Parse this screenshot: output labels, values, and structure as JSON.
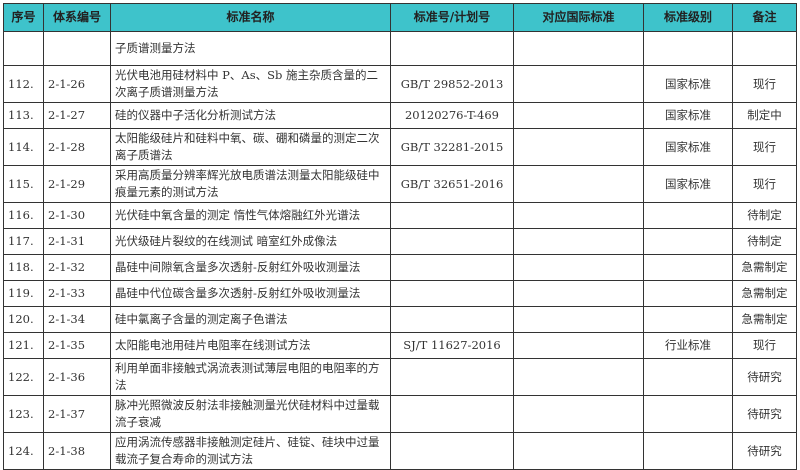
{
  "headers": [
    "序号",
    "体系编号",
    "标准名称",
    "标准号/计划号",
    "对应国际标准",
    "标准级别",
    "备注"
  ],
  "rows": [
    {
      "no": "",
      "code": "",
      "name": "子质谱测量方法",
      "std": "",
      "intl": "",
      "level": "",
      "note": ""
    },
    {
      "no": "112.",
      "code": "2-1-26",
      "name": "光伏电池用硅材料中 P、As、Sb 施主杂质含量的二次离子质谱测量方法",
      "std": "GB/T 29852-2013",
      "intl": "",
      "level": "国家标准",
      "note": "现行"
    },
    {
      "no": "113.",
      "code": "2-1-27",
      "name": "硅的仪器中子活化分析测试方法",
      "std": "20120276-T-469",
      "intl": "",
      "level": "国家标准",
      "note": "制定中"
    },
    {
      "no": "114.",
      "code": "2-1-28",
      "name": "太阳能级硅片和硅料中氧、碳、硼和磷量的测定二次离子质谱法",
      "std": "GB/T 32281-2015",
      "intl": "",
      "level": "国家标准",
      "note": "现行"
    },
    {
      "no": "115.",
      "code": "2-1-29",
      "name": "采用高质量分辨率辉光放电质谱法测量太阳能级硅中痕量元素的测试方法",
      "std": "GB/T 32651-2016",
      "intl": "",
      "level": "国家标准",
      "note": "现行"
    },
    {
      "no": "116.",
      "code": "2-1-30",
      "name": "光伏硅中氧含量的测定 惰性气体熔融红外光谱法",
      "std": "",
      "intl": "",
      "level": "",
      "note": "待制定"
    },
    {
      "no": "117.",
      "code": "2-1-31",
      "name": "光伏级硅片裂纹的在线测试 暗室红外成像法",
      "std": "",
      "intl": "",
      "level": "",
      "note": "待制定"
    },
    {
      "no": "118.",
      "code": "2-1-32",
      "name": "晶硅中间隙氧含量多次透射-反射红外吸收测量法",
      "std": "",
      "intl": "",
      "level": "",
      "note": "急需制定"
    },
    {
      "no": "119.",
      "code": "2-1-33",
      "name": "晶硅中代位碳含量多次透射-反射红外吸收测量法",
      "std": "",
      "intl": "",
      "level": "",
      "note": "急需制定"
    },
    {
      "no": "120.",
      "code": "2-1-34",
      "name": "硅中氯离子含量的测定离子色谱法",
      "std": "",
      "intl": "",
      "level": "",
      "note": "急需制定"
    },
    {
      "no": "121.",
      "code": "2-1-35",
      "name": "太阳能电池用硅片电阻率在线测试方法",
      "std": "SJ/T 11627-2016",
      "intl": "",
      "level": "行业标准",
      "note": "现行"
    },
    {
      "no": "122.",
      "code": "2-1-36",
      "name": "利用单面非接触式涡流表测试薄层电阻的电阻率的方法",
      "std": "",
      "intl": "",
      "level": "",
      "note": "待研究"
    },
    {
      "no": "123.",
      "code": "2-1-37",
      "name": "脉冲光照微波反射法非接触测量光伏硅材料中过量载流子衰减",
      "std": "",
      "intl": "",
      "level": "",
      "note": "待研究"
    },
    {
      "no": "124.",
      "code": "2-1-38",
      "name": "应用涡流传感器非接触测定硅片、硅锭、硅块中过量载流子复合寿命的测试方法",
      "std": "",
      "intl": "",
      "level": "",
      "note": "待研究"
    }
  ]
}
